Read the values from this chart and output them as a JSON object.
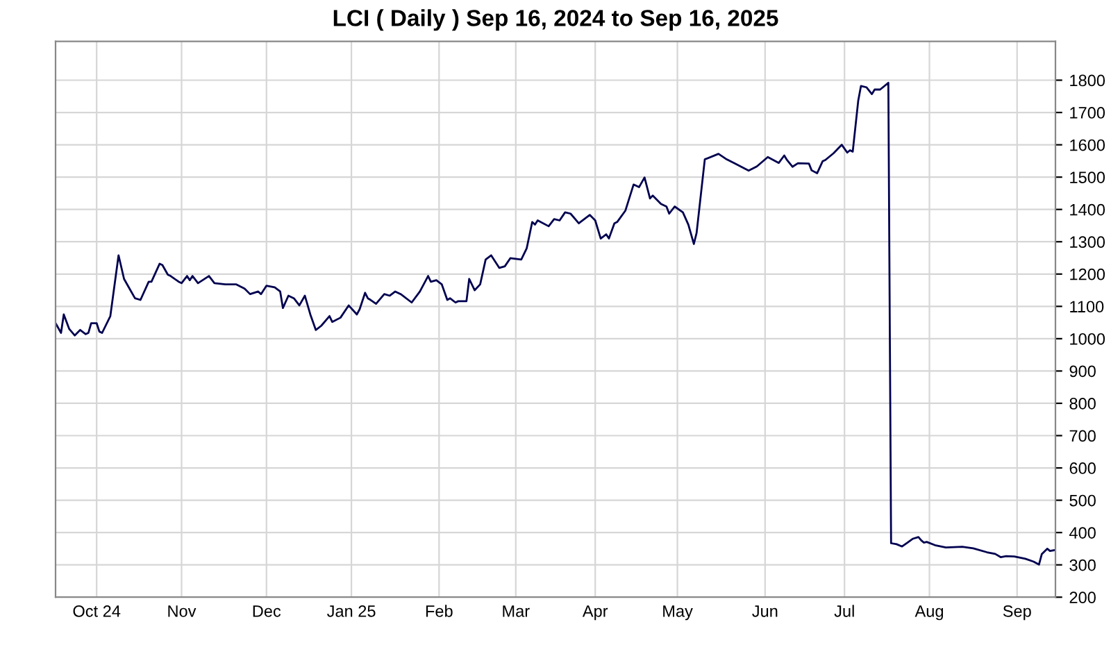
{
  "chart_data": {
    "type": "line",
    "title": "LCI ( Daily ) Sep 16, 2024 to Sep 16, 2025",
    "x": [
      "2024-09-16",
      "2024-09-18",
      "2024-09-19",
      "2024-09-21",
      "2024-09-23",
      "2024-09-25",
      "2024-09-27",
      "2024-09-28",
      "2024-09-29",
      "2024-10-01",
      "2024-10-02",
      "2024-10-03",
      "2024-10-06",
      "2024-10-09",
      "2024-10-11",
      "2024-10-13",
      "2024-10-15",
      "2024-10-17",
      "2024-10-20",
      "2024-10-21",
      "2024-10-24",
      "2024-10-25",
      "2024-10-27",
      "2024-10-28",
      "2024-10-31",
      "2024-11-01",
      "2024-11-03",
      "2024-11-04",
      "2024-11-05",
      "2024-11-07",
      "2024-11-11",
      "2024-11-13",
      "2024-11-17",
      "2024-11-21",
      "2024-11-24",
      "2024-11-26",
      "2024-11-29",
      "2024-11-30",
      "2024-12-02",
      "2024-12-05",
      "2024-12-07",
      "2024-12-08",
      "2024-12-10",
      "2024-12-12",
      "2024-12-14",
      "2024-12-16",
      "2024-12-18",
      "2024-12-20",
      "2024-12-22",
      "2024-12-25",
      "2024-12-26",
      "2024-12-29",
      "2025-01-01",
      "2025-01-04",
      "2025-01-05",
      "2025-01-07",
      "2025-01-08",
      "2025-01-09",
      "2025-01-11",
      "2025-01-14",
      "2025-01-16",
      "2025-01-18",
      "2025-01-20",
      "2025-01-24",
      "2025-01-27",
      "2025-01-30",
      "2025-01-31",
      "2025-02-02",
      "2025-02-04",
      "2025-02-06",
      "2025-02-07",
      "2025-02-09",
      "2025-02-10",
      "2025-02-13",
      "2025-02-14",
      "2025-02-16",
      "2025-02-18",
      "2025-02-20",
      "2025-02-22",
      "2025-02-25",
      "2025-02-27",
      "2025-03-01",
      "2025-03-05",
      "2025-03-07",
      "2025-03-09",
      "2025-03-10",
      "2025-03-11",
      "2025-03-15",
      "2025-03-17",
      "2025-03-19",
      "2025-03-21",
      "2025-03-23",
      "2025-03-26",
      "2025-03-30",
      "2025-04-01",
      "2025-04-03",
      "2025-04-05",
      "2025-04-06",
      "2025-04-08",
      "2025-04-09",
      "2025-04-12",
      "2025-04-15",
      "2025-04-17",
      "2025-04-19",
      "2025-04-21",
      "2025-04-22",
      "2025-04-25",
      "2025-04-27",
      "2025-04-28",
      "2025-04-30",
      "2025-05-03",
      "2025-05-05",
      "2025-05-07",
      "2025-05-08",
      "2025-05-11",
      "2025-05-16",
      "2025-05-19",
      "2025-05-22",
      "2025-05-27",
      "2025-05-30",
      "2025-06-03",
      "2025-06-05",
      "2025-06-07",
      "2025-06-09",
      "2025-06-10",
      "2025-06-12",
      "2025-06-14",
      "2025-06-18",
      "2025-06-19",
      "2025-06-21",
      "2025-06-23",
      "2025-06-24",
      "2025-06-27",
      "2025-06-30",
      "2025-07-02",
      "2025-07-03",
      "2025-07-04",
      "2025-07-06",
      "2025-07-07",
      "2025-07-09",
      "2025-07-11",
      "2025-07-12",
      "2025-07-14",
      "2025-07-17",
      "2025-07-18",
      "2025-07-20",
      "2025-07-22",
      "2025-07-24",
      "2025-07-26",
      "2025-07-28",
      "2025-07-29",
      "2025-07-30",
      "2025-07-31",
      "2025-08-03",
      "2025-08-07",
      "2025-08-13",
      "2025-08-17",
      "2025-08-22",
      "2025-08-25",
      "2025-08-27",
      "2025-08-29",
      "2025-09-01",
      "2025-09-05",
      "2025-09-08",
      "2025-09-10",
      "2025-09-11",
      "2025-09-13",
      "2025-09-14",
      "2025-09-16"
    ],
    "series": [
      {
        "color": "#000050",
        "values": [
          1048,
          1018,
          1075,
          1030,
          1010,
          1027,
          1014,
          1018,
          1048,
          1048,
          1022,
          1018,
          1070,
          1258,
          1185,
          1155,
          1125,
          1120,
          1176,
          1176,
          1232,
          1228,
          1198,
          1194,
          1176,
          1172,
          1194,
          1181,
          1194,
          1172,
          1194,
          1172,
          1168,
          1168,
          1155,
          1138,
          1146,
          1138,
          1164,
          1159,
          1146,
          1095,
          1133,
          1125,
          1103,
          1133,
          1075,
          1027,
          1040,
          1070,
          1052,
          1065,
          1103,
          1075,
          1091,
          1142,
          1125,
          1120,
          1108,
          1138,
          1133,
          1146,
          1138,
          1112,
          1146,
          1194,
          1176,
          1181,
          1168,
          1120,
          1125,
          1112,
          1116,
          1116,
          1185,
          1150,
          1168,
          1245,
          1258,
          1219,
          1224,
          1249,
          1245,
          1280,
          1361,
          1353,
          1366,
          1348,
          1370,
          1366,
          1391,
          1387,
          1357,
          1383,
          1366,
          1310,
          1323,
          1310,
          1357,
          1361,
          1396,
          1477,
          1469,
          1499,
          1434,
          1443,
          1417,
          1409,
          1387,
          1409,
          1391,
          1353,
          1293,
          1327,
          1555,
          1572,
          1555,
          1542,
          1520,
          1533,
          1562,
          1553,
          1544,
          1567,
          1553,
          1532,
          1543,
          1542,
          1521,
          1512,
          1549,
          1553,
          1574,
          1600,
          1576,
          1583,
          1579,
          1736,
          1782,
          1778,
          1757,
          1771,
          1771,
          1792,
          367,
          364,
          357,
          369,
          381,
          386,
          376,
          369,
          371,
          361,
          354,
          356,
          351,
          339,
          334,
          324,
          327,
          326,
          319,
          310,
          301,
          333,
          350,
          343,
          346
        ]
      }
    ],
    "xlim": [
      "2024-09-16",
      "2025-09-16"
    ],
    "xticks": [
      {
        "value": "2024-10-01",
        "label": "Oct 24"
      },
      {
        "value": "2024-11-01",
        "label": "Nov"
      },
      {
        "value": "2024-12-02",
        "label": "Dec"
      },
      {
        "value": "2025-01-02",
        "label": "Jan 25"
      },
      {
        "value": "2025-02-03",
        "label": "Feb"
      },
      {
        "value": "2025-03-03",
        "label": "Mar"
      },
      {
        "value": "2025-04-01",
        "label": "Apr"
      },
      {
        "value": "2025-05-01",
        "label": "May"
      },
      {
        "value": "2025-06-02",
        "label": "Jun"
      },
      {
        "value": "2025-07-01",
        "label": "Jul"
      },
      {
        "value": "2025-08-01",
        "label": "Aug"
      },
      {
        "value": "2025-09-02",
        "label": "Sep"
      }
    ],
    "ylim": [
      200,
      1920
    ],
    "yticks": [
      200,
      300,
      400,
      500,
      600,
      700,
      800,
      900,
      1000,
      1100,
      1200,
      1300,
      1400,
      1500,
      1600,
      1700,
      1800
    ],
    "grid": true,
    "legend": false,
    "marker": "none",
    "line_style": "solid"
  }
}
